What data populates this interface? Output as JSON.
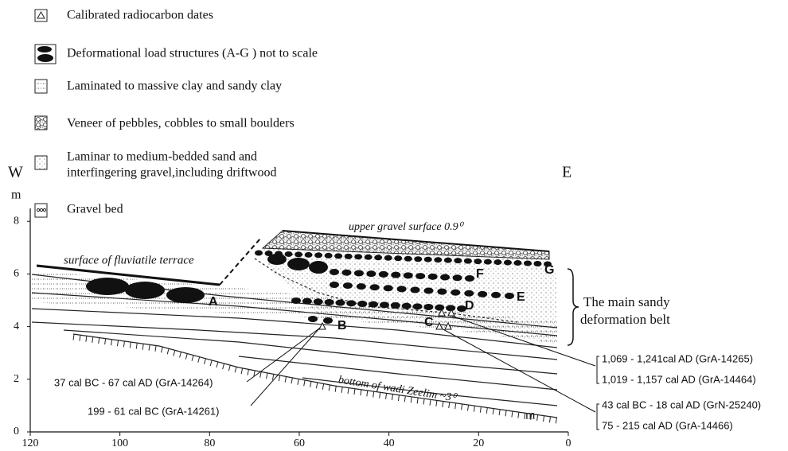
{
  "legend": [
    {
      "label": "Calibrated radiocarbon dates"
    },
    {
      "label": "Deformational load structures (A-G ) not to scale"
    },
    {
      "label": "Laminated to massive clay and sandy clay"
    },
    {
      "label": "Veneer of pebbles, cobbles to small boulders"
    },
    {
      "label": [
        "Laminar to medium-bedded sand and",
        "interfingering gravel,including driftwood"
      ]
    },
    {
      "label": "Gravel bed"
    }
  ],
  "compass": {
    "west": "W",
    "east": "E"
  },
  "axes": {
    "y_unit": "m",
    "yticks": [
      0,
      2,
      4,
      6,
      8
    ],
    "x_unit": "m",
    "xticks": [
      120,
      100,
      80,
      60,
      40,
      20,
      0
    ]
  },
  "annotations": {
    "upper_surface": "upper gravel surface 0.9⁰",
    "terrace": "surface of fluviatile terrace",
    "bottom": "bottom of wadi Zeelim ~3⁰"
  },
  "structures": [
    "A",
    "B",
    "C",
    "D",
    "E",
    "F",
    "G"
  ],
  "belt_label": [
    "The main sandy",
    "deformation belt"
  ],
  "dates": {
    "left": [
      "37 cal BC - 67 cal AD (GrA-14264)",
      "199 - 61 cal BC (GrA-14261)"
    ],
    "right": [
      "1,069 - 1,241cal AD (GrA-14265)",
      "1,019 - 1,157 cal AD (GrA-14464)",
      "43 cal BC - 18 cal AD (GrN-25240)",
      "75 - 215 cal AD (GrA-14466)"
    ]
  }
}
